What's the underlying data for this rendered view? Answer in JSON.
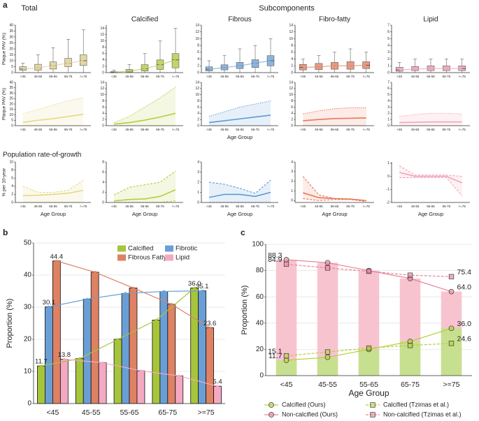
{
  "figure": {
    "panel_labels": [
      "a",
      "b",
      "c"
    ],
    "subcomponents_heading": "Subcomponents",
    "growth_heading": "Population rate-of-growth"
  },
  "chart_data": [
    {
      "type": "box",
      "title": "Total",
      "ylabel": "Plaque PAV (%)",
      "categories": [
        "<45",
        "45-55",
        "55-65",
        "65-75",
        ">=75"
      ],
      "color": "#e3d8a3",
      "ylim": [
        0,
        40
      ],
      "yticks": [
        0,
        5,
        10,
        15,
        20,
        25,
        30,
        35,
        40
      ],
      "q1": [
        2,
        2,
        3,
        5,
        6
      ],
      "median": [
        3,
        4,
        6,
        8,
        10
      ],
      "q3": [
        5,
        7,
        9,
        12,
        15
      ],
      "whislo": [
        0,
        0,
        0,
        0,
        0
      ],
      "whishi": [
        8,
        15,
        21,
        28,
        36
      ]
    },
    {
      "type": "box",
      "title": "Calcified",
      "categories": [
        "<45",
        "45-55",
        "55-65",
        "65-75",
        ">=75"
      ],
      "color": "#c5d36b",
      "ylim": [
        0,
        15
      ],
      "yticks": [
        0,
        2,
        4,
        6,
        8,
        10,
        12,
        14
      ],
      "q1": [
        0,
        0.2,
        0.5,
        1,
        1.5
      ],
      "median": [
        0.1,
        0.5,
        1.2,
        2.5,
        4
      ],
      "q3": [
        0.3,
        1,
        2.5,
        4,
        6
      ],
      "whislo": [
        0,
        0,
        0,
        0,
        0
      ],
      "whishi": [
        0.8,
        2.5,
        6,
        10,
        14
      ]
    },
    {
      "type": "box",
      "title": "Fibrous",
      "categories": [
        "<45",
        "45-55",
        "55-65",
        "65-75",
        ">=75"
      ],
      "color": "#8db5dc",
      "ylim": [
        0,
        14
      ],
      "yticks": [
        0,
        2,
        4,
        6,
        8,
        10,
        12,
        14
      ],
      "q1": [
        0.5,
        0.8,
        1.2,
        1.5,
        2
      ],
      "median": [
        1,
        1.5,
        2,
        2.8,
        3.5
      ],
      "q3": [
        1.7,
        2.3,
        3,
        3.8,
        5
      ],
      "whislo": [
        0,
        0,
        0,
        0,
        0
      ],
      "whishi": [
        3.5,
        5,
        7,
        8,
        10
      ]
    },
    {
      "type": "box",
      "title": "Fibro-fatty",
      "categories": [
        "<45",
        "45-55",
        "55-65",
        "65-75",
        ">=75"
      ],
      "color": "#e89a80",
      "ylim": [
        0,
        14
      ],
      "yticks": [
        0,
        2,
        4,
        6,
        8,
        10,
        12,
        14
      ],
      "q1": [
        0.8,
        0.9,
        1,
        1,
        1.2
      ],
      "median": [
        1.5,
        1.7,
        2,
        2,
        2.2
      ],
      "q3": [
        2.4,
        2.7,
        3,
        3.2,
        3.2
      ],
      "whislo": [
        0,
        0,
        0,
        0,
        0
      ],
      "whishi": [
        4,
        5,
        6,
        7,
        6
      ]
    },
    {
      "type": "box",
      "title": "Lipid",
      "categories": [
        "<45",
        "45-55",
        "55-65",
        "65-75",
        ">=75"
      ],
      "color": "#eeb1c0",
      "ylim": [
        0,
        7
      ],
      "yticks": [
        0,
        1,
        2,
        3,
        4,
        5,
        6,
        7
      ],
      "q1": [
        0.2,
        0.3,
        0.3,
        0.3,
        0.3
      ],
      "median": [
        0.4,
        0.5,
        0.6,
        0.6,
        0.6
      ],
      "q3": [
        0.8,
        0.9,
        1,
        1,
        1
      ],
      "whislo": [
        0,
        0,
        0,
        0,
        0
      ],
      "whishi": [
        1.5,
        2,
        2,
        2,
        2
      ]
    },
    {
      "type": "band",
      "ylabel": "Plaque PAV (%)",
      "categories": [
        "<45",
        "45-55",
        "55-65",
        "65-75",
        ">=75"
      ],
      "color": "#e6d983",
      "bound_style": "dotted",
      "ylim": [
        0,
        40
      ],
      "yticks": [
        0,
        5,
        10,
        15,
        20,
        25,
        30,
        35,
        40
      ],
      "values": [
        3,
        5,
        6.5,
        8.5,
        10.5
      ],
      "lower": [
        0,
        0,
        0,
        0,
        0
      ],
      "upper": [
        11,
        15,
        19,
        23,
        26
      ]
    },
    {
      "type": "band",
      "categories": [
        "<45",
        "45-55",
        "55-65",
        "65-75",
        ">=75"
      ],
      "color": "#b8cc3e",
      "bound_style": "dotted",
      "ylim": [
        0,
        14
      ],
      "yticks": [
        0,
        2,
        4,
        6,
        8,
        10,
        12,
        14
      ],
      "values": [
        0.5,
        1,
        1.8,
        2.8,
        4
      ],
      "lower": [
        0,
        0,
        0,
        0,
        0
      ],
      "upper": [
        1,
        3,
        6,
        9,
        12.5
      ]
    },
    {
      "type": "band",
      "xlabel": "Age Group",
      "categories": [
        "<45",
        "45-55",
        "55-65",
        "65-75",
        ">=75"
      ],
      "color": "#5b9bd5",
      "bound_style": "dotted",
      "ylim": [
        0,
        14
      ],
      "yticks": [
        0,
        2,
        4,
        6,
        8,
        10,
        12,
        14
      ],
      "values": [
        1,
        1.6,
        2.2,
        2.8,
        3.4
      ],
      "lower": [
        0,
        0,
        0,
        0,
        0
      ],
      "upper": [
        3,
        4.5,
        6,
        7,
        8
      ]
    },
    {
      "type": "band",
      "categories": [
        "<45",
        "45-55",
        "55-65",
        "65-75",
        ">=75"
      ],
      "color": "#e8785a",
      "bound_style": "dotted",
      "ylim": [
        0,
        14
      ],
      "yticks": [
        0,
        2,
        4,
        6,
        8,
        10,
        12,
        14
      ],
      "values": [
        1.6,
        2,
        2.3,
        2.4,
        2.5
      ],
      "lower": [
        0,
        0,
        0,
        0,
        0
      ],
      "upper": [
        3.8,
        4.8,
        5.5,
        5.8,
        5.8
      ]
    },
    {
      "type": "band",
      "categories": [
        "<45",
        "45-55",
        "55-65",
        "65-75",
        ">=75"
      ],
      "color": "#f2a3b8",
      "bound_style": "dotted",
      "ylim": [
        0,
        7
      ],
      "yticks": [
        0,
        1,
        2,
        3,
        4,
        5,
        6,
        7
      ],
      "values": [
        0.5,
        0.55,
        0.6,
        0.6,
        0.6
      ],
      "lower": [
        0,
        0,
        0,
        0,
        0
      ],
      "upper": [
        1.5,
        1.8,
        2,
        2,
        1.9
      ]
    },
    {
      "type": "band",
      "ylabel": "% per 10-year",
      "xlabel": "Age Group",
      "categories": [
        "<45",
        "45-55",
        "55-65",
        "65-75",
        ">=75"
      ],
      "color": "#e6d983",
      "bound_style": "dashed",
      "ylim": [
        0,
        10
      ],
      "yticks": [
        0,
        2,
        4,
        6,
        8,
        10
      ],
      "values": [
        1.7,
        1.8,
        2,
        2.3,
        3
      ],
      "lower": [
        0,
        0,
        0,
        0,
        0
      ],
      "upper": [
        4,
        2.5,
        2.5,
        3,
        5.5
      ]
    },
    {
      "type": "band",
      "xlabel": "Age Group",
      "categories": [
        "<45",
        "45-55",
        "55-65",
        "65-75",
        ">=75"
      ],
      "color": "#b8cc3e",
      "bound_style": "dashed",
      "ylim": [
        0,
        8
      ],
      "yticks": [
        0,
        2,
        4,
        6,
        8
      ],
      "values": [
        0.3,
        0.6,
        0.7,
        1.2,
        2.5
      ],
      "lower": [
        0,
        0,
        0,
        0,
        0.3
      ],
      "upper": [
        1.5,
        3,
        3.5,
        4,
        6.2
      ]
    },
    {
      "type": "band",
      "xlabel": "Age Group",
      "categories": [
        "<45",
        "45-55",
        "55-65",
        "65-75",
        ">=75"
      ],
      "color": "#5b9bd5",
      "bound_style": "dashed",
      "ylim": [
        0,
        4
      ],
      "yticks": [
        0,
        1,
        2,
        3,
        4
      ],
      "values": [
        0.5,
        0.8,
        0.8,
        0.6,
        1
      ],
      "lower": [
        0,
        0,
        0,
        0,
        0
      ],
      "upper": [
        2,
        1.8,
        1.4,
        0.9,
        2.2
      ]
    },
    {
      "type": "band",
      "xlabel": "Age Group",
      "categories": [
        "<45",
        "45-55",
        "55-65",
        "65-75",
        ">=75"
      ],
      "color": "#e8785a",
      "bound_style": "dashed",
      "ylim": [
        -0.2,
        4
      ],
      "yticks": [
        0,
        1,
        2,
        3,
        4
      ],
      "values": [
        0.8,
        0.3,
        0.2,
        0.15,
        0
      ],
      "lower": [
        0.2,
        0,
        0.1,
        0.1,
        -0.1
      ],
      "upper": [
        2.5,
        0.6,
        0.2,
        0.15,
        0
      ]
    },
    {
      "type": "band",
      "xlabel": "Age Group",
      "categories": [
        "<45",
        "45-55",
        "55-65",
        "65-75",
        ">=75"
      ],
      "color": "#f2a3b8",
      "bound_style": "dashed",
      "ylim": [
        -2,
        1.1
      ],
      "yticks": [
        -2,
        -1,
        0,
        1
      ],
      "values": [
        0.3,
        0,
        0,
        0,
        -0.5
      ],
      "lower": [
        -0.1,
        -0.1,
        -0.1,
        -0.1,
        -1.5
      ],
      "upper": [
        0.8,
        0.1,
        0.1,
        0.1,
        0
      ]
    },
    {
      "type": "bar",
      "ylabel": "Proportion (%)",
      "categories": [
        "<45",
        "45-55",
        "55-65",
        "65-75",
        ">=75"
      ],
      "ylim": [
        0,
        50
      ],
      "yticks": [
        0,
        10,
        20,
        30,
        40,
        50
      ],
      "grid": true,
      "connect_lines": true,
      "series": [
        {
          "name": "Calcified",
          "color": "#a7c53b",
          "values": [
            11.7,
            14,
            20,
            26,
            36
          ],
          "value_labels": [
            "11.7",
            null,
            null,
            null,
            "36.0"
          ]
        },
        {
          "name": "Fibrotic",
          "color": "#6a9fd6",
          "values": [
            30.1,
            32.5,
            34.3,
            34.9,
            35.1
          ],
          "value_labels": [
            "30.1",
            null,
            null,
            null,
            "35.1"
          ]
        },
        {
          "name": "Fibrous Fatty",
          "color": "#df8163",
          "values": [
            44.4,
            40.9,
            36,
            30.9,
            23.6
          ],
          "value_labels": [
            "44.4",
            null,
            null,
            null,
            "23.6"
          ]
        },
        {
          "name": "Lipid",
          "color": "#f4a9c2",
          "values": [
            13.8,
            12.7,
            10.2,
            8.6,
            5.4
          ],
          "value_labels": [
            "13.8",
            null,
            null,
            null,
            "5.4"
          ]
        }
      ]
    },
    {
      "type": "combo",
      "xlabel": "Age Group",
      "ylabel": "Proportion (%)",
      "categories": [
        "<45",
        "45-55",
        "55-65",
        "65-75",
        ">=75"
      ],
      "ylim": [
        0,
        100
      ],
      "yticks": [
        0,
        20,
        40,
        60,
        80,
        100
      ],
      "grid": true,
      "bars": [
        {
          "color": "#f7c3cf",
          "values": [
            88.3,
            86,
            80,
            74,
            64
          ]
        },
        {
          "color": "#c7e08f",
          "values": [
            11.7,
            14,
            20,
            26,
            36
          ]
        }
      ],
      "series": [
        {
          "name": "Calcified (Ours)",
          "color": "#b7cf3a",
          "marker": "circle",
          "dash": "solid",
          "values": [
            11.7,
            14,
            20,
            26,
            36
          ],
          "value_labels": [
            "11.7",
            null,
            null,
            null,
            "36.0"
          ]
        },
        {
          "name": "Calcified (Tzimas et al.)",
          "color": "#b7cf3a",
          "marker": "square",
          "dash": "dashed",
          "values": [
            15.1,
            18,
            21,
            23,
            24.6
          ],
          "value_labels": [
            "15.1",
            null,
            null,
            null,
            "24.6"
          ]
        },
        {
          "name": "Non-calcified (Ours)",
          "color": "#e8849a",
          "marker": "circle",
          "dash": "solid",
          "values": [
            88.3,
            86,
            80,
            74,
            64
          ],
          "value_labels": [
            "88.3",
            null,
            null,
            null,
            "64.0"
          ]
        },
        {
          "name": "Non-calcified (Tzimas et al.)",
          "color": "#e8849a",
          "marker": "square",
          "dash": "dashed",
          "values": [
            84.9,
            82,
            79.5,
            76.5,
            75.4
          ],
          "value_labels": [
            "84.9",
            null,
            null,
            null,
            "75.4"
          ]
        }
      ]
    }
  ]
}
